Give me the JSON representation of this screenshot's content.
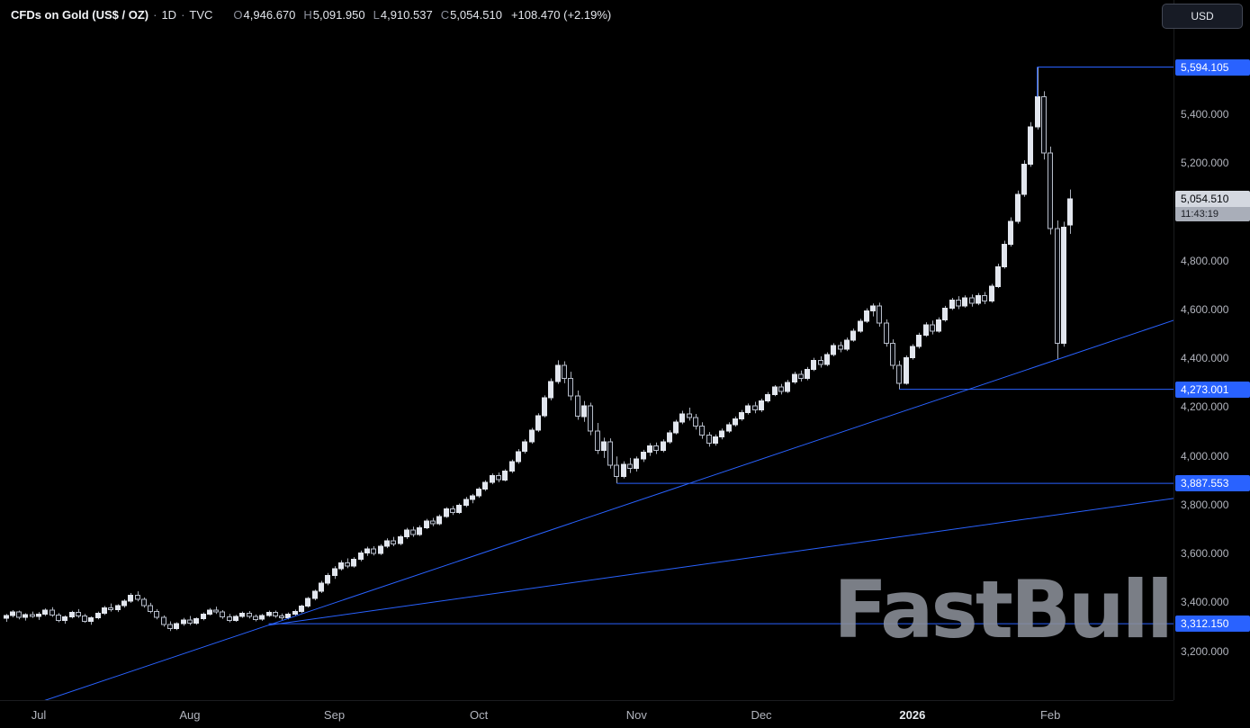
{
  "header": {
    "symbol": "CFDs on Gold (US$ / OZ)",
    "sep": "·",
    "timeframe": "1D",
    "exchange": "TVC",
    "ohlc": {
      "o_label": "O",
      "o": "4,946.670",
      "h_label": "H",
      "h": "5,091.950",
      "l_label": "L",
      "l": "4,910.537",
      "c_label": "C",
      "c": "5,054.510"
    },
    "change": "+108.470 (+2.19%)"
  },
  "toolbar": {
    "currency_button": "USD"
  },
  "watermark": "FastBull",
  "colors": {
    "accent": "#2962ff",
    "up": "#e2e6ee",
    "down": "#0b0d12",
    "candle_border": "#b6bcc8",
    "wick": "#a7adb8",
    "axis_text": "#b2b5be",
    "last_price_bg": "#d4d8e0",
    "countdown_bg": "#a9aeb9"
  },
  "chart_data": {
    "type": "candlestick",
    "title": "CFDs on Gold (US$ / OZ) 1D TVC",
    "legend_position": "top-left",
    "grid": false,
    "y_axis": {
      "min": 2999,
      "max": 5869,
      "tick_interval": 200,
      "ticks": [
        {
          "price": 5400,
          "label": "5,400.000"
        },
        {
          "price": 5200,
          "label": "5,200.000"
        },
        {
          "price": 4800,
          "label": "4,800.000"
        },
        {
          "price": 4600,
          "label": "4,600.000"
        },
        {
          "price": 4400,
          "label": "4,400.000"
        },
        {
          "price": 4200,
          "label": "4,200.000"
        },
        {
          "price": 4000,
          "label": "4,000.000"
        },
        {
          "price": 3800,
          "label": "3,800.000"
        },
        {
          "price": 3600,
          "label": "3,600.000"
        },
        {
          "price": 3400,
          "label": "3,400.000"
        },
        {
          "price": 3200,
          "label": "3,200.000"
        }
      ]
    },
    "x_axis": {
      "ticks": [
        {
          "label": "Jul",
          "index": 5
        },
        {
          "label": "Aug",
          "index": 28
        },
        {
          "label": "Sep",
          "index": 50
        },
        {
          "label": "Oct",
          "index": 72
        },
        {
          "label": "Nov",
          "index": 96
        },
        {
          "label": "Dec",
          "index": 115
        },
        {
          "label": "2026",
          "index": 138,
          "emphasis": true
        },
        {
          "label": "Feb",
          "index": 159
        }
      ]
    },
    "last_price": {
      "price": 5054.51,
      "label": "5,054.510",
      "countdown": "11:43:19"
    },
    "price_levels": [
      {
        "price": 5594.105,
        "label": "5,594.105",
        "start_index": 157,
        "drop_to_price": 5472
      },
      {
        "price": 4273.001,
        "label": "4,273.001",
        "start_index": 136
      },
      {
        "price": 3887.553,
        "label": "3,887.553",
        "start_index": 93
      },
      {
        "price": 3312.15,
        "label": "3,312.150",
        "start_index": 40
      }
    ],
    "trendlines": [
      {
        "from_index": 2,
        "from_price": 2962,
        "to_index": 190,
        "to_price": 4667
      },
      {
        "from_index": 40,
        "from_price": 3306,
        "to_index": 190,
        "to_price": 3872
      }
    ],
    "candles": [
      [
        3335,
        3352,
        3320,
        3345
      ],
      [
        3345,
        3368,
        3338,
        3360
      ],
      [
        3360,
        3366,
        3330,
        3338
      ],
      [
        3338,
        3355,
        3325,
        3350
      ],
      [
        3350,
        3362,
        3336,
        3342
      ],
      [
        3342,
        3360,
        3328,
        3352
      ],
      [
        3352,
        3375,
        3344,
        3368
      ],
      [
        3368,
        3380,
        3340,
        3348
      ],
      [
        3348,
        3356,
        3318,
        3325
      ],
      [
        3325,
        3346,
        3312,
        3340
      ],
      [
        3340,
        3365,
        3334,
        3358
      ],
      [
        3358,
        3372,
        3336,
        3344
      ],
      [
        3344,
        3352,
        3316,
        3322
      ],
      [
        3322,
        3342,
        3308,
        3336
      ],
      [
        3336,
        3362,
        3330,
        3355
      ],
      [
        3355,
        3385,
        3348,
        3378
      ],
      [
        3378,
        3395,
        3362,
        3370
      ],
      [
        3370,
        3392,
        3360,
        3386
      ],
      [
        3386,
        3412,
        3378,
        3405
      ],
      [
        3405,
        3438,
        3398,
        3428
      ],
      [
        3428,
        3445,
        3404,
        3412
      ],
      [
        3412,
        3420,
        3378,
        3386
      ],
      [
        3386,
        3398,
        3355,
        3362
      ],
      [
        3362,
        3372,
        3330,
        3338
      ],
      [
        3338,
        3346,
        3300,
        3308
      ],
      [
        3308,
        3322,
        3282,
        3292
      ],
      [
        3292,
        3318,
        3286,
        3312
      ],
      [
        3312,
        3336,
        3304,
        3328
      ],
      [
        3328,
        3344,
        3306,
        3315
      ],
      [
        3315,
        3338,
        3308,
        3332
      ],
      [
        3332,
        3358,
        3326,
        3352
      ],
      [
        3352,
        3376,
        3346,
        3368
      ],
      [
        3368,
        3382,
        3352,
        3360
      ],
      [
        3360,
        3368,
        3332,
        3340
      ],
      [
        3340,
        3352,
        3318,
        3326
      ],
      [
        3326,
        3348,
        3320,
        3342
      ],
      [
        3342,
        3362,
        3336,
        3355
      ],
      [
        3355,
        3364,
        3334,
        3342
      ],
      [
        3342,
        3350,
        3322,
        3330
      ],
      [
        3330,
        3352,
        3324,
        3346
      ],
      [
        3346,
        3366,
        3340,
        3358
      ],
      [
        3358,
        3366,
        3336,
        3344
      ],
      [
        3344,
        3354,
        3328,
        3336
      ],
      [
        3336,
        3358,
        3330,
        3352
      ],
      [
        3352,
        3370,
        3344,
        3362
      ],
      [
        3362,
        3390,
        3356,
        3384
      ],
      [
        3384,
        3422,
        3378,
        3415
      ],
      [
        3415,
        3452,
        3408,
        3445
      ],
      [
        3445,
        3488,
        3438,
        3478
      ],
      [
        3478,
        3520,
        3470,
        3510
      ],
      [
        3510,
        3548,
        3496,
        3538
      ],
      [
        3538,
        3572,
        3530,
        3562
      ],
      [
        3562,
        3580,
        3540,
        3548
      ],
      [
        3548,
        3585,
        3542,
        3576
      ],
      [
        3576,
        3612,
        3568,
        3602
      ],
      [
        3602,
        3628,
        3590,
        3618
      ],
      [
        3618,
        3630,
        3592,
        3600
      ],
      [
        3600,
        3638,
        3594,
        3630
      ],
      [
        3630,
        3662,
        3622,
        3652
      ],
      [
        3652,
        3668,
        3630,
        3640
      ],
      [
        3640,
        3676,
        3634,
        3668
      ],
      [
        3668,
        3705,
        3660,
        3696
      ],
      [
        3696,
        3710,
        3668,
        3678
      ],
      [
        3678,
        3715,
        3672,
        3706
      ],
      [
        3706,
        3742,
        3700,
        3734
      ],
      [
        3734,
        3746,
        3712,
        3722
      ],
      [
        3722,
        3760,
        3716,
        3752
      ],
      [
        3752,
        3790,
        3746,
        3782
      ],
      [
        3782,
        3795,
        3758,
        3768
      ],
      [
        3768,
        3805,
        3762,
        3798
      ],
      [
        3798,
        3832,
        3790,
        3822
      ],
      [
        3822,
        3844,
        3806,
        3836
      ],
      [
        3836,
        3872,
        3828,
        3864
      ],
      [
        3864,
        3900,
        3856,
        3892
      ],
      [
        3892,
        3928,
        3884,
        3920
      ],
      [
        3920,
        3932,
        3892,
        3902
      ],
      [
        3902,
        3945,
        3896,
        3938
      ],
      [
        3938,
        3985,
        3930,
        3976
      ],
      [
        3976,
        4028,
        3968,
        4018
      ],
      [
        4018,
        4068,
        4010,
        4058
      ],
      [
        4058,
        4115,
        4050,
        4105
      ],
      [
        4105,
        4175,
        4098,
        4165
      ],
      [
        4165,
        4248,
        4158,
        4238
      ],
      [
        4238,
        4318,
        4228,
        4305
      ],
      [
        4305,
        4392,
        4295,
        4372
      ],
      [
        4372,
        4388,
        4298,
        4318
      ],
      [
        4318,
        4345,
        4228,
        4245
      ],
      [
        4245,
        4268,
        4148,
        4162
      ],
      [
        4162,
        4225,
        4140,
        4205
      ],
      [
        4205,
        4218,
        4085,
        4102
      ],
      [
        4102,
        4135,
        4008,
        4022
      ],
      [
        4022,
        4075,
        3992,
        4058
      ],
      [
        4058,
        4072,
        3948,
        3962
      ],
      [
        3962,
        3998,
        3888,
        3915
      ],
      [
        3915,
        3978,
        3908,
        3965
      ],
      [
        3965,
        3992,
        3930,
        3948
      ],
      [
        3948,
        3998,
        3936,
        3988
      ],
      [
        3988,
        4025,
        3975,
        4015
      ],
      [
        4015,
        4052,
        4000,
        4042
      ],
      [
        4042,
        4055,
        4008,
        4022
      ],
      [
        4022,
        4068,
        4015,
        4058
      ],
      [
        4058,
        4105,
        4050,
        4095
      ],
      [
        4095,
        4148,
        4088,
        4138
      ],
      [
        4138,
        4185,
        4130,
        4172
      ],
      [
        4172,
        4198,
        4145,
        4158
      ],
      [
        4158,
        4172,
        4108,
        4122
      ],
      [
        4122,
        4138,
        4070,
        4085
      ],
      [
        4085,
        4098,
        4038,
        4052
      ],
      [
        4052,
        4088,
        4042,
        4078
      ],
      [
        4078,
        4112,
        4068,
        4102
      ],
      [
        4102,
        4138,
        4094,
        4128
      ],
      [
        4128,
        4162,
        4120,
        4152
      ],
      [
        4152,
        4188,
        4144,
        4178
      ],
      [
        4178,
        4215,
        4170,
        4205
      ],
      [
        4205,
        4222,
        4175,
        4188
      ],
      [
        4188,
        4235,
        4180,
        4225
      ],
      [
        4225,
        4262,
        4218,
        4252
      ],
      [
        4252,
        4290,
        4245,
        4282
      ],
      [
        4282,
        4295,
        4252,
        4265
      ],
      [
        4265,
        4312,
        4258,
        4302
      ],
      [
        4302,
        4345,
        4295,
        4335
      ],
      [
        4335,
        4350,
        4305,
        4318
      ],
      [
        4318,
        4365,
        4310,
        4355
      ],
      [
        4355,
        4402,
        4348,
        4392
      ],
      [
        4392,
        4408,
        4362,
        4375
      ],
      [
        4375,
        4425,
        4368,
        4415
      ],
      [
        4415,
        4462,
        4408,
        4452
      ],
      [
        4452,
        4468,
        4425,
        4438
      ],
      [
        4438,
        4485,
        4430,
        4475
      ],
      [
        4475,
        4522,
        4468,
        4512
      ],
      [
        4512,
        4562,
        4505,
        4552
      ],
      [
        4552,
        4605,
        4545,
        4595
      ],
      [
        4595,
        4625,
        4572,
        4615
      ],
      [
        4615,
        4628,
        4530,
        4545
      ],
      [
        4545,
        4560,
        4448,
        4462
      ],
      [
        4462,
        4478,
        4355,
        4372
      ],
      [
        4372,
        4390,
        4273,
        4298
      ],
      [
        4298,
        4412,
        4292,
        4402
      ],
      [
        4402,
        4458,
        4395,
        4448
      ],
      [
        4448,
        4505,
        4440,
        4495
      ],
      [
        4495,
        4548,
        4488,
        4538
      ],
      [
        4538,
        4555,
        4498,
        4512
      ],
      [
        4512,
        4568,
        4505,
        4558
      ],
      [
        4558,
        4615,
        4550,
        4605
      ],
      [
        4605,
        4648,
        4598,
        4638
      ],
      [
        4638,
        4655,
        4602,
        4615
      ],
      [
        4615,
        4658,
        4608,
        4648
      ],
      [
        4648,
        4662,
        4612,
        4625
      ],
      [
        4625,
        4668,
        4618,
        4658
      ],
      [
        4658,
        4672,
        4622,
        4635
      ],
      [
        4635,
        4705,
        4628,
        4695
      ],
      [
        4695,
        4788,
        4688,
        4775
      ],
      [
        4775,
        4882,
        4768,
        4868
      ],
      [
        4868,
        4978,
        4858,
        4962
      ],
      [
        4962,
        5088,
        4952,
        5072
      ],
      [
        5072,
        5212,
        5062,
        5195
      ],
      [
        5195,
        5368,
        5185,
        5348
      ],
      [
        5348,
        5594,
        5338,
        5472
      ],
      [
        5472,
        5495,
        5215,
        5242
      ],
      [
        5242,
        5268,
        4908,
        4932
      ],
      [
        4932,
        4965,
        4395,
        4462
      ],
      [
        4462,
        4960,
        4448,
        4938
      ],
      [
        4946.67,
        5091.95,
        4910.537,
        5054.51
      ]
    ]
  }
}
